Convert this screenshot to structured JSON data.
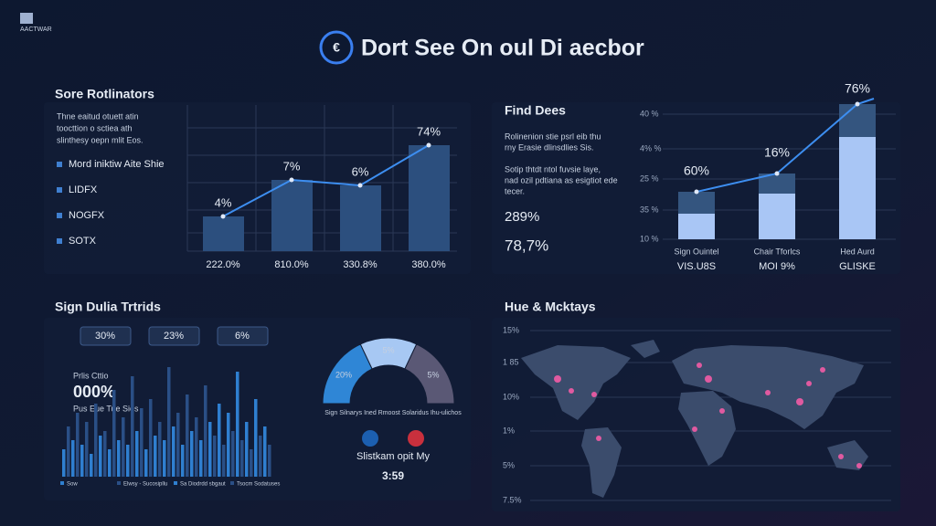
{
  "header": {
    "brand": "AACTWAR",
    "title": "Dort See On oul Di aecbor"
  },
  "panels": [
    {
      "title": "Sore Rotlinators",
      "description": [
        "Thne eaitud otuett atin",
        "toocttion o sctiea ath",
        "slinthesy oepn mlit Eos."
      ],
      "legend": [
        "Mord iniktiw Aite Shie",
        "LIDFX",
        "NOGFX",
        "SOTX"
      ],
      "bars": [
        38,
        78,
        72,
        116
      ],
      "categories": [
        "222.0%",
        "810.0%",
        "330.8%",
        "380.0%"
      ],
      "point_labels": [
        "4%",
        "7%",
        "6%",
        "74%"
      ],
      "bar_color": "#2c4f7e"
    },
    {
      "title": "Find Dees",
      "description": [
        "Rolinenion stie psrl eib thu",
        "rny Erasie dlinsdlies Sis."
      ],
      "description2": [
        "Sotip thtdt ntol fuvsie laye,",
        "nad ozil pdtiana as esigtiot ede",
        "tecer."
      ],
      "stats": [
        "289%",
        "78,7%"
      ],
      "axis_labels": [
        "40 %",
        "4% %",
        "25 %",
        "35 %",
        "10 %"
      ],
      "categories": [
        "Sign Ouintel",
        "Chair Tforlcs",
        "Hed Aurd"
      ],
      "sub_labels": [
        "VIS.U8S",
        "MOI 9%",
        "GLISKE"
      ],
      "point_labels": [
        "60%",
        "16%",
        "76%"
      ],
      "base": [
        28,
        50,
        112
      ],
      "top": [
        24,
        22,
        36
      ],
      "base_color": "#a9c6f5",
      "top_color": "#34557f"
    },
    {
      "title": "Sign Dulia Trtrids",
      "pills": [
        "30%",
        "23%",
        "6%"
      ],
      "caption": "Prlis Cttio",
      "big": "000%",
      "small": "Pus Eue Tue Sies",
      "bars": [
        30,
        55,
        40,
        70,
        35,
        60,
        25,
        80,
        45,
        50,
        30,
        95,
        40,
        65,
        35,
        110,
        50,
        75,
        30,
        85,
        45,
        60,
        40,
        120,
        55,
        70,
        35,
        90,
        50,
        65,
        40,
        100,
        60,
        45,
        80,
        35,
        70,
        50,
        115,
        40,
        60,
        30,
        85,
        45,
        55,
        35
      ],
      "colors": [
        "#2f7fd0",
        "#2a4f86"
      ],
      "legend": [
        "Sow",
        "Elwsy - Sucosipllu",
        "Sa Diodrdd sbgaut",
        "Tsocm Sodatuses"
      ],
      "gauge": {
        "segments": [
          36,
          28,
          36
        ],
        "colors": [
          "#2f86d6",
          "#a7c8f3",
          "#5a5875"
        ],
        "labels": [
          "20%",
          "5%",
          "5%"
        ],
        "caption": "Sign Silnarys Ined Rmoost Solaridus Ihu-ulichos",
        "subtitle": "Slistkam opit My",
        "time": "3:59"
      }
    },
    {
      "title": "Hue & Mcktays",
      "axis_labels": [
        "15%",
        "1 85",
        "10%",
        "1%",
        "5%",
        "7.5%"
      ]
    }
  ]
}
